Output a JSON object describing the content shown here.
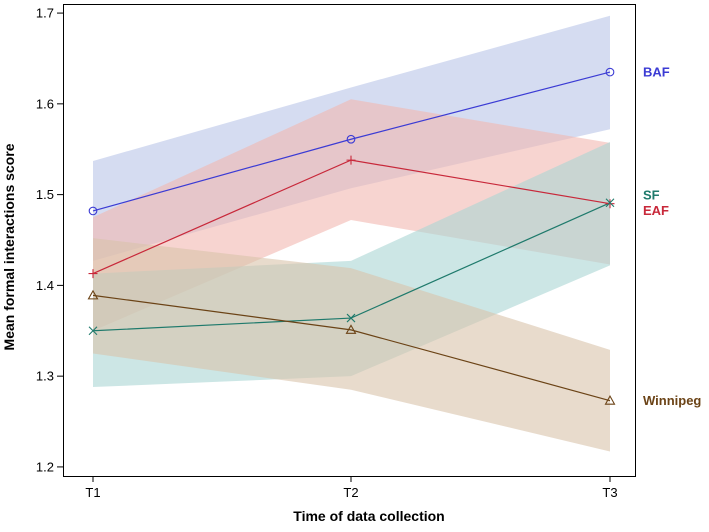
{
  "chart_data": {
    "type": "line",
    "title": "",
    "xlabel": "Time of data collection",
    "ylabel": "Mean formal interactions score",
    "categories": [
      "T1",
      "T2",
      "T3"
    ],
    "ylim": [
      1.19,
      1.71
    ],
    "yticks": [
      "1.2",
      "1.3",
      "1.4",
      "1.5",
      "1.6",
      "1.7"
    ],
    "grid": false,
    "legend": "series labels at right end of lines",
    "series": [
      {
        "name": "BAF",
        "color": "#3b3bd4",
        "band_color": "#b9c4e8",
        "marker": "circle",
        "values": [
          1.482,
          1.561,
          1.635
        ],
        "lower": [
          1.427,
          1.507,
          1.572
        ],
        "upper": [
          1.537,
          1.618,
          1.697
        ]
      },
      {
        "name": "EAF",
        "color": "#c8283a",
        "band_color": "#f2b8b1",
        "marker": "plus",
        "values": [
          1.413,
          1.538,
          1.49
        ],
        "lower": [
          1.35,
          1.472,
          1.423
        ],
        "upper": [
          1.475,
          1.605,
          1.557
        ]
      },
      {
        "name": "SF",
        "color": "#1f7a6c",
        "band_color": "#aad5d3",
        "marker": "x",
        "values": [
          1.35,
          1.364,
          1.491
        ],
        "lower": [
          1.288,
          1.3,
          1.422
        ],
        "upper": [
          1.413,
          1.427,
          1.558
        ]
      },
      {
        "name": "Winnipeg",
        "color": "#6b4316",
        "band_color": "#d8c3aa",
        "marker": "triangle",
        "values": [
          1.389,
          1.351,
          1.273
        ],
        "lower": [
          1.325,
          1.285,
          1.217
        ],
        "upper": [
          1.452,
          1.419,
          1.329
        ]
      }
    ]
  }
}
